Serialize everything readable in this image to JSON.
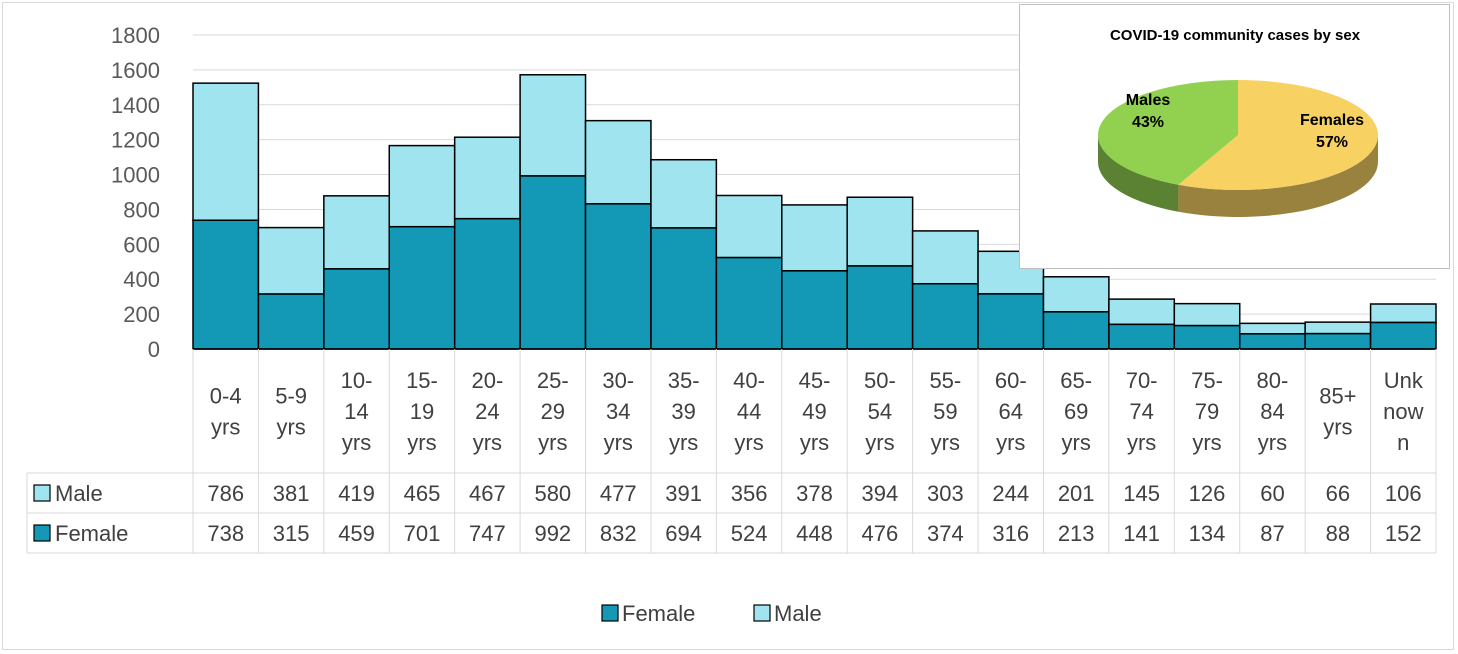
{
  "chart_data": [
    {
      "type": "bar",
      "stacked": true,
      "categories": [
        [
          "0-4",
          "yrs"
        ],
        [
          "5-9",
          "yrs"
        ],
        [
          "10-",
          "14",
          "yrs"
        ],
        [
          "15-",
          "19",
          "yrs"
        ],
        [
          "20-",
          "24",
          "yrs"
        ],
        [
          "25-",
          "29",
          "yrs"
        ],
        [
          "30-",
          "34",
          "yrs"
        ],
        [
          "35-",
          "39",
          "yrs"
        ],
        [
          "40-",
          "44",
          "yrs"
        ],
        [
          "45-",
          "49",
          "yrs"
        ],
        [
          "50-",
          "54",
          "yrs"
        ],
        [
          "55-",
          "59",
          "yrs"
        ],
        [
          "60-",
          "64",
          "yrs"
        ],
        [
          "65-",
          "69",
          "yrs"
        ],
        [
          "70-",
          "74",
          "yrs"
        ],
        [
          "75-",
          "79",
          "yrs"
        ],
        [
          "80-",
          "84",
          "yrs"
        ],
        [
          "85+",
          "yrs"
        ],
        [
          "Unk",
          "now",
          "n"
        ]
      ],
      "series": [
        {
          "name": "Female",
          "color": "#1399b6",
          "values": [
            738,
            315,
            459,
            701,
            747,
            992,
            832,
            694,
            524,
            448,
            476,
            374,
            316,
            213,
            141,
            134,
            87,
            88,
            152
          ]
        },
        {
          "name": "Male",
          "color": "#9fe4ee",
          "values": [
            786,
            381,
            419,
            465,
            467,
            580,
            477,
            391,
            356,
            378,
            394,
            303,
            244,
            201,
            145,
            126,
            60,
            66,
            106
          ]
        }
      ],
      "table_rows": [
        "Male",
        "Female"
      ],
      "yticks": [
        "0",
        "200",
        "400",
        "600",
        "800",
        "1000",
        "1200",
        "1400",
        "1600",
        "1800"
      ],
      "ylim": [
        0,
        1800
      ],
      "grid": true,
      "legend": {
        "position": "bottom",
        "items": [
          "Female",
          "Male"
        ]
      }
    },
    {
      "type": "pie",
      "title": "COVID-19 community cases by sex",
      "slices": [
        {
          "label": "Females",
          "percent_label": "57%",
          "value": 57,
          "color": "#f7d262"
        },
        {
          "label": "Males",
          "percent_label": "43%",
          "value": 43,
          "color": "#92d050"
        }
      ]
    }
  ]
}
